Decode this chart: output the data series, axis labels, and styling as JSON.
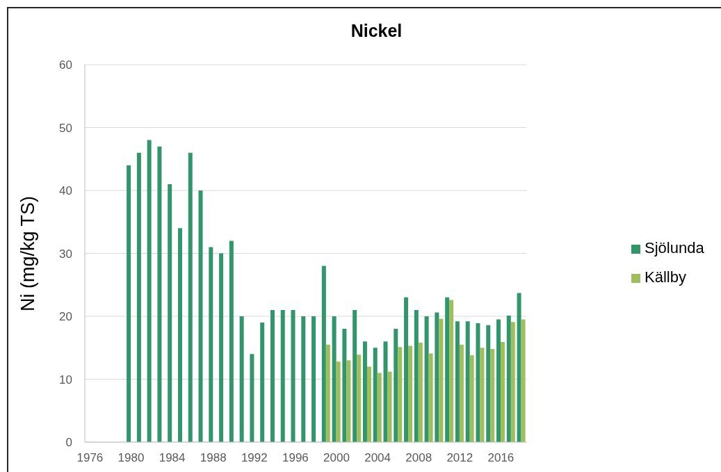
{
  "chart_data": {
    "type": "bar",
    "title": "Nickel",
    "ylabel": "Ni (mg/kg TS)",
    "categories": [
      "1976",
      null,
      null,
      null,
      "1980",
      null,
      null,
      null,
      "1984",
      null,
      null,
      null,
      "1988",
      null,
      null,
      null,
      "1992",
      null,
      null,
      null,
      "1996",
      null,
      null,
      null,
      "2000",
      null,
      null,
      null,
      "2004",
      null,
      null,
      null,
      "2008",
      null,
      null,
      null,
      "2012",
      null,
      null,
      null,
      "2016",
      null,
      null
    ],
    "series": [
      {
        "name": "Sjölunda",
        "color": "#31966c",
        "values": [
          null,
          null,
          null,
          null,
          44,
          46,
          48,
          47,
          41,
          34,
          46,
          40,
          31,
          30,
          32,
          20,
          14,
          19,
          21,
          21,
          21,
          20,
          20,
          28,
          20,
          18,
          21,
          16,
          15,
          16,
          18,
          23,
          21,
          20,
          20.6,
          23,
          19.2,
          19.2,
          18.9,
          18.6,
          19.5,
          20.1,
          23.7
        ]
      },
      {
        "name": "Källby",
        "color": "#9fbf5c",
        "values": [
          null,
          null,
          null,
          null,
          null,
          null,
          null,
          null,
          null,
          null,
          null,
          null,
          null,
          null,
          null,
          null,
          null,
          null,
          null,
          null,
          null,
          null,
          null,
          15.5,
          12.8,
          13,
          13.9,
          12,
          11,
          11.2,
          15.1,
          15.3,
          15.8,
          14.1,
          19.6,
          22.6,
          15.5,
          13.8,
          15,
          14.8,
          15.9,
          19.1,
          19.5
        ]
      }
    ],
    "ylim": [
      0,
      60
    ],
    "yticks": [
      0,
      10,
      20,
      30,
      40,
      50,
      60
    ],
    "grid": "y",
    "legend": "right"
  }
}
